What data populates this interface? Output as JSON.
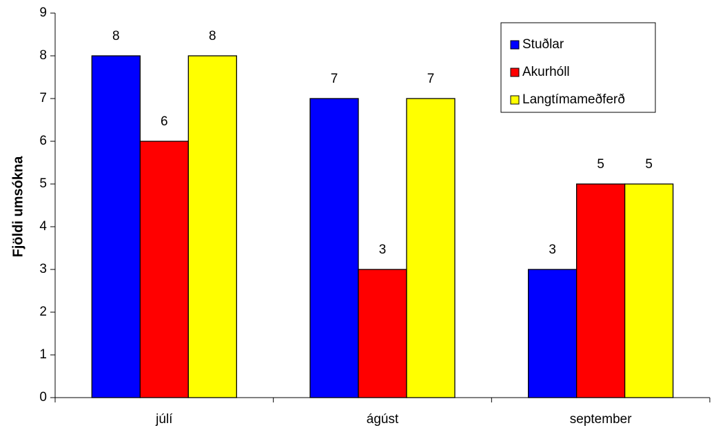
{
  "chart_data": {
    "type": "bar",
    "title": "",
    "xlabel": "",
    "ylabel": "Fjöldi umsókna",
    "categories": [
      "júlí",
      "ágúst",
      "september"
    ],
    "series": [
      {
        "name": "Stuðlar",
        "color": "#0000FF",
        "values": [
          8,
          7,
          3
        ]
      },
      {
        "name": "Akurhóll",
        "color": "#FF0000",
        "values": [
          6,
          3,
          5
        ]
      },
      {
        "name": "Langtímameðferð",
        "color": "#FFFF00",
        "values": [
          8,
          7,
          5
        ]
      }
    ],
    "ylim": [
      0,
      9
    ],
    "yticks": [
      0,
      1,
      2,
      3,
      4,
      5,
      6,
      7,
      8,
      9
    ],
    "grid": false,
    "legend_position": "top-right",
    "data_labels": true
  }
}
